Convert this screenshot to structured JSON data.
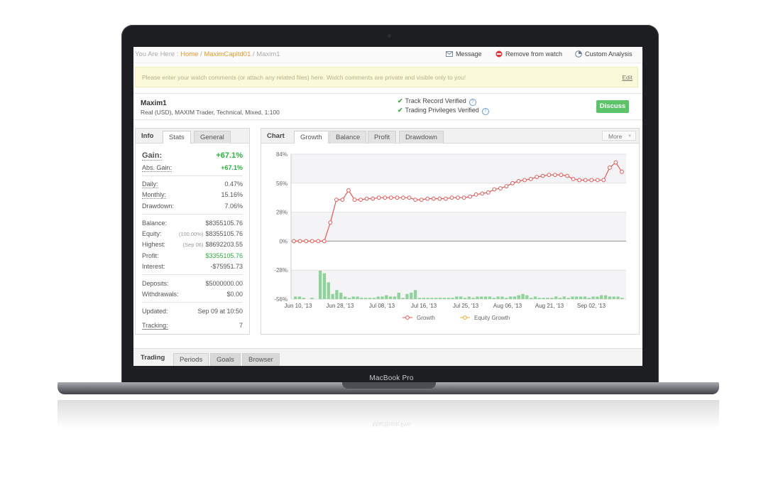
{
  "breadcrumb": {
    "prefix": "You Are Here :",
    "home": "Home",
    "account": "MaximCapltd01",
    "current": "Maxim1",
    "sep": "/"
  },
  "actions": {
    "message": "Message",
    "remove_watch": "Remove from watch",
    "custom_analysis": "Custom Analysis"
  },
  "notice": {
    "text": "Please enter your watch comments (or attach any related files) here. Watch comments are private and visible only to you!",
    "edit": "Edit"
  },
  "account": {
    "name": "Maxim1",
    "details": "Real (USD), MAXIM Trader, Technical, Mixed, 1:100",
    "verified_track": "Track Record Verified",
    "verified_privileges": "Trading Privileges Verified",
    "q": "?",
    "discuss": "Discuss"
  },
  "info_tabs": {
    "title": "Info",
    "tab_stats": "Stats",
    "tab_general": "General"
  },
  "stats": {
    "gain_label": "Gain:",
    "gain": "+67.1%",
    "abs_gain_label": "Abs. Gain:",
    "abs_gain": "+67.1%",
    "daily_label": "Daily:",
    "daily": "0.47%",
    "monthly_label": "Monthly:",
    "monthly": "15.16%",
    "drawdown_label": "Drawdown:",
    "drawdown": "7.06%",
    "balance_label": "Balance:",
    "balance": "$8355105.76",
    "equity_label": "Equity:",
    "equity_pct": "(100.00%)",
    "equity": "$8355105.76",
    "highest_label": "Highest:",
    "highest_date": "(Sep 06)",
    "highest": "$8692203.55",
    "profit_label": "Profit:",
    "profit": "$3355105.76",
    "interest_label": "Interest:",
    "interest": "-$75951.73",
    "deposits_label": "Deposits:",
    "deposits": "$5000000.00",
    "withdrawals_label": "Withdrawals:",
    "withdrawals": "$0.00",
    "updated_label": "Updated:",
    "updated": "Sep 09 at 10:50",
    "tracking_label": "Tracking:",
    "tracking": "7"
  },
  "chart_tabs": {
    "title": "Chart",
    "growth": "Growth",
    "balance": "Balance",
    "profit": "Profit",
    "drawdown": "Drawdown",
    "more": "More"
  },
  "bottom_tabs": {
    "title": "Trading",
    "periods": "Periods",
    "goals": "Goals",
    "browser": "Browser"
  },
  "device": {
    "brand": "MacBook Pro"
  },
  "colors": {
    "growth": "#e05a5a",
    "equity": "#f0a830",
    "bars": "#8fd39a",
    "gain_green": "#2bb03c",
    "discuss": "#5cc36a",
    "link": "#e79a2c"
  },
  "chart_data": {
    "type": "line",
    "ylim": [
      -56,
      84
    ],
    "yticks": [
      "84%",
      "56%",
      "28%",
      "0%",
      "-28%",
      "-56%"
    ],
    "xticks": [
      "Jun 10, '13",
      "Jun 28, '13",
      "Jul 08, '13",
      "Jul 16, '13",
      "Jul 25, '13",
      "Aug 06, '13",
      "Aug 21, '13",
      "Sep 02, '13"
    ],
    "series": [
      {
        "name": "Growth",
        "values": [
          0,
          0,
          0,
          0,
          0,
          0,
          18,
          40,
          40,
          49,
          40,
          40,
          41,
          41,
          42,
          42,
          42,
          42,
          42,
          42,
          40,
          40,
          41,
          41,
          41,
          41,
          42,
          42,
          42,
          43,
          45,
          46,
          47,
          50,
          51,
          53,
          56,
          58,
          59,
          60,
          62,
          63,
          64,
          64,
          64,
          63,
          60,
          59,
          59,
          59,
          59,
          59,
          71,
          76,
          67
        ]
      },
      {
        "name": "Equity Growth",
        "values": []
      }
    ],
    "bars": [
      2,
      2,
      1,
      0,
      1,
      0,
      22,
      20,
      13,
      4,
      7,
      5,
      2,
      1,
      2,
      2,
      1,
      1,
      1,
      1,
      2,
      2,
      3,
      2,
      2,
      5,
      1,
      4,
      5,
      7,
      1,
      1,
      1,
      1,
      1,
      1,
      1,
      1,
      1,
      2,
      2,
      1,
      2,
      1,
      2,
      2,
      2,
      2,
      1,
      2,
      2,
      1,
      2,
      2,
      3,
      4,
      3,
      1,
      2,
      1,
      1,
      1,
      1,
      2,
      1,
      2,
      1,
      2,
      2,
      2,
      2,
      1,
      2,
      2,
      3,
      3,
      2,
      2,
      2,
      1
    ]
  }
}
